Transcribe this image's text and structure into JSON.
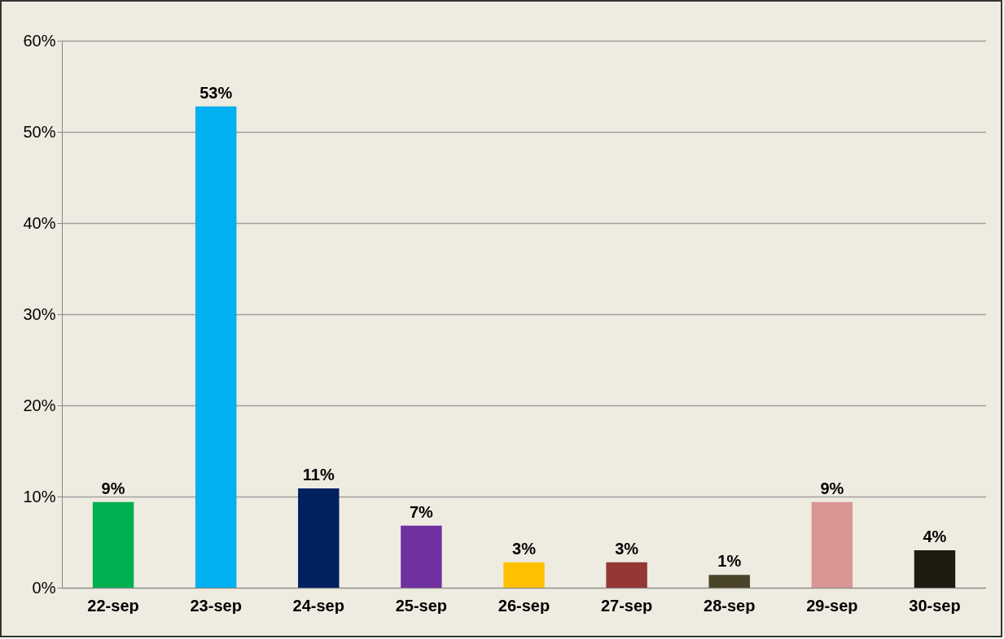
{
  "chart_data": {
    "type": "bar",
    "categories": [
      "22-sep",
      "23-sep",
      "24-sep",
      "25-sep",
      "26-sep",
      "27-sep",
      "28-sep",
      "29-sep",
      "30-sep"
    ],
    "values": [
      9.4,
      52.8,
      10.9,
      6.8,
      2.8,
      2.8,
      1.4,
      9.4,
      4.1
    ],
    "colors": [
      "#00b050",
      "#00b0f0",
      "#002060",
      "#7030a0",
      "#ffc000",
      "#953735",
      "#4a452a",
      "#d99694",
      "#1d1b10"
    ],
    "value_labels": [
      "9%",
      "53%",
      "11%",
      "7%",
      "3%",
      "3%",
      "1%",
      "9%",
      "4%"
    ],
    "ylim": [
      0,
      60
    ],
    "yticks": [
      {
        "value": 0,
        "label": "0%"
      },
      {
        "value": 10,
        "label": "10%"
      },
      {
        "value": 20,
        "label": "20%"
      },
      {
        "value": 30,
        "label": "30%"
      },
      {
        "value": 40,
        "label": "40%"
      },
      {
        "value": 50,
        "label": "50%"
      },
      {
        "value": 60,
        "label": "60%"
      }
    ],
    "grid": "y"
  }
}
